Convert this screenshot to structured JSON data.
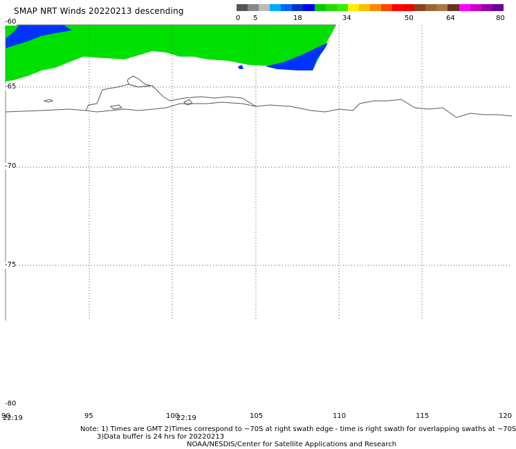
{
  "title": "SMAP NRT Winds  20220213 descending",
  "colorbar": {
    "labels": [
      "0",
      "5",
      "18",
      "34",
      "50",
      "64",
      "80"
    ],
    "colors": [
      "#555555",
      "#888888",
      "#bbbbbb",
      "#00aaff",
      "#0066ff",
      "#0033cc",
      "#0000ff",
      "#00cc00",
      "#22dd00",
      "#33ee00",
      "#ffee00",
      "#ffbb00",
      "#ff8800",
      "#ff4400",
      "#ff0000",
      "#ee0000",
      "#884422",
      "#996633",
      "#aa7744",
      "#663322",
      "#ff00ff",
      "#cc00cc",
      "#9900aa",
      "#660099"
    ]
  },
  "lat_labels": [
    "-60",
    "-65",
    "-70",
    "-75",
    "-80"
  ],
  "lon_labels": [
    "90",
    "95",
    "100",
    "105",
    "110",
    "115",
    "120"
  ],
  "time_labels": [
    "22:19",
    "22:19"
  ],
  "notes": {
    "line1": "Note: 1) Times are GMT 2)Times correspond to ~70S at right swath edge - time is right swath for overlapping swaths at ~70S",
    "line2": "3)Data buffer is 24 hrs for 20220213",
    "line3": "NOAA/NESDIS/Center for Satellite Applications and Research"
  },
  "colors": {
    "wind_green": "#00e000",
    "wind_blue": "#0033ff",
    "coastline": "#555555"
  }
}
